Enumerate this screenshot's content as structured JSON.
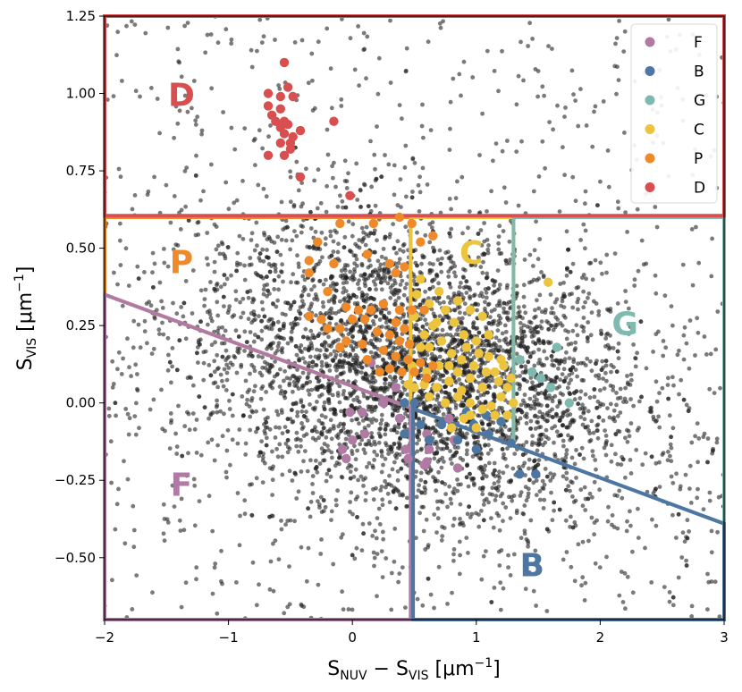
{
  "chart_data": {
    "type": "scatter",
    "xlabel_parts": {
      "s": "S",
      "nuv": "NUV",
      "minus": " − ",
      "vis": "VIS",
      "unit": " [μm",
      "exp": "−1",
      "close": "]"
    },
    "ylabel_parts": {
      "s": "S",
      "vis": "VIS",
      "unit": " [μm",
      "exp": "−1",
      "close": "]"
    },
    "xlim": [
      -2,
      3
    ],
    "ylim": [
      -0.7,
      1.25
    ],
    "xticks": [
      -2,
      -1,
      0,
      1,
      2,
      3
    ],
    "xtick_labels": [
      "−2",
      "−1",
      "0",
      "1",
      "2",
      "3"
    ],
    "yticks": [
      -0.5,
      -0.25,
      0.0,
      0.25,
      0.5,
      0.75,
      1.0,
      1.25
    ],
    "ytick_labels": [
      "−0.50",
      "−0.25",
      "0.00",
      "0.25",
      "0.50",
      "0.75",
      "1.00",
      "1.25"
    ],
    "grid": false,
    "legend_position": "top-right",
    "background": {
      "n_points": 5200,
      "center_x": 0.55,
      "center_y": 0.1,
      "sd_x": 0.9,
      "sd_y": 0.24,
      "correlation": -0.25,
      "color": "#222222",
      "opacity": 0.6
    },
    "boundary_line": {
      "x1": -2,
      "y1": 0.35,
      "x2": 3,
      "y2": -0.39,
      "color": "#111111",
      "style": "dashed"
    },
    "regions": [
      {
        "name": "D",
        "color": "#d94f50",
        "label_x": -1.38,
        "label_y": 0.96
      },
      {
        "name": "P",
        "color": "#ef8a2b",
        "label_x": -1.38,
        "label_y": 0.42
      },
      {
        "name": "C",
        "color": "#ecc43e",
        "label_x": 0.96,
        "label_y": 0.45
      },
      {
        "name": "G",
        "color": "#7fbab1",
        "label_x": 2.2,
        "label_y": 0.22
      },
      {
        "name": "F",
        "color": "#b07aa4",
        "label_x": -1.38,
        "label_y": -0.3
      },
      {
        "name": "B",
        "color": "#4e76a2",
        "label_x": 1.45,
        "label_y": -0.56
      }
    ],
    "series": [
      {
        "name": "F",
        "color": "#b07aa4",
        "points": [
          [
            0.08,
            -0.03
          ],
          [
            -0.02,
            -0.03
          ],
          [
            0.1,
            -0.1
          ],
          [
            0.0,
            -0.12
          ],
          [
            -0.08,
            -0.15
          ],
          [
            -0.05,
            -0.18
          ],
          [
            0.35,
            0.05
          ],
          [
            0.38,
            -0.05
          ],
          [
            0.43,
            -0.15
          ],
          [
            0.45,
            -0.18
          ],
          [
            0.6,
            -0.1
          ],
          [
            0.62,
            -0.15
          ],
          [
            0.58,
            -0.2
          ],
          [
            0.78,
            -0.05
          ],
          [
            0.82,
            -0.12
          ],
          [
            0.85,
            -0.21
          ],
          [
            0.6,
            -0.19
          ],
          [
            0.25,
            0.0
          ],
          [
            0.15,
            0.13
          ]
        ]
      },
      {
        "name": "B",
        "color": "#4e76a2",
        "points": [
          [
            0.42,
            -0.1
          ],
          [
            0.55,
            -0.07
          ],
          [
            0.62,
            -0.12
          ],
          [
            0.72,
            -0.07
          ],
          [
            0.98,
            -0.07
          ],
          [
            1.1,
            -0.1
          ],
          [
            1.08,
            -0.04
          ],
          [
            1.2,
            -0.06
          ],
          [
            1.28,
            -0.13
          ],
          [
            1.35,
            -0.23
          ],
          [
            1.48,
            -0.23
          ],
          [
            0.85,
            -0.12
          ],
          [
            0.92,
            -0.03
          ],
          [
            0.42,
            0.0
          ],
          [
            1.0,
            -0.15
          ],
          [
            0.5,
            -0.0
          ]
        ]
      },
      {
        "name": "G",
        "color": "#7fbab1",
        "points": [
          [
            1.35,
            0.14
          ],
          [
            1.45,
            0.1
          ],
          [
            1.65,
            0.18
          ],
          [
            1.6,
            0.05
          ],
          [
            1.75,
            0.0
          ],
          [
            1.52,
            0.08
          ]
        ]
      },
      {
        "name": "C",
        "color": "#ecc43e",
        "points": [
          [
            1.58,
            0.39
          ],
          [
            0.85,
            0.33
          ],
          [
            0.95,
            0.3
          ],
          [
            1.05,
            0.28
          ],
          [
            0.75,
            0.3
          ],
          [
            0.65,
            0.25
          ],
          [
            0.9,
            0.22
          ],
          [
            1.0,
            0.2
          ],
          [
            1.1,
            0.15
          ],
          [
            1.2,
            0.14
          ],
          [
            0.8,
            0.16
          ],
          [
            0.7,
            0.12
          ],
          [
            0.6,
            0.1
          ],
          [
            0.55,
            0.18
          ],
          [
            0.5,
            0.05
          ],
          [
            0.45,
            0.06
          ],
          [
            0.5,
            0.28
          ],
          [
            0.62,
            0.32
          ],
          [
            0.7,
            0.36
          ],
          [
            0.85,
            0.1
          ],
          [
            0.95,
            0.08
          ],
          [
            1.05,
            0.05
          ],
          [
            1.15,
            0.1
          ],
          [
            1.25,
            0.05
          ],
          [
            0.75,
            0.0
          ],
          [
            0.85,
            0.02
          ],
          [
            0.95,
            0.0
          ],
          [
            1.05,
            -0.02
          ],
          [
            1.15,
            -0.04
          ],
          [
            1.25,
            -0.04
          ],
          [
            0.9,
            -0.05
          ],
          [
            0.8,
            -0.08
          ],
          [
            1.1,
            0.22
          ],
          [
            1.2,
            0.02
          ],
          [
            0.68,
            0.05
          ],
          [
            0.78,
            0.07
          ],
          [
            0.88,
            0.14
          ],
          [
            0.98,
            0.12
          ],
          [
            1.08,
            0.1
          ],
          [
            1.18,
            0.07
          ],
          [
            1.28,
            0.08
          ],
          [
            0.92,
            0.18
          ],
          [
            1.02,
            0.16
          ],
          [
            0.72,
            0.2
          ],
          [
            0.62,
            0.18
          ],
          [
            0.58,
            0.22
          ],
          [
            0.68,
            0.26
          ],
          [
            0.82,
            0.26
          ],
          [
            0.52,
            0.35
          ],
          [
            0.55,
            0.4
          ],
          [
            0.48,
            0.12
          ],
          [
            0.58,
            0.06
          ],
          [
            1.3,
            0.0
          ],
          [
            1.0,
            -0.08
          ],
          [
            0.95,
            -0.04
          ],
          [
            1.12,
            -0.01
          ],
          [
            0.88,
            0.04
          ],
          [
            0.78,
            0.12
          ],
          [
            1.22,
            0.12
          ],
          [
            0.62,
            0.02
          ]
        ]
      },
      {
        "name": "P",
        "color": "#ef8a2b",
        "points": [
          [
            0.17,
            0.58
          ],
          [
            -0.1,
            0.58
          ],
          [
            0.48,
            0.58
          ],
          [
            0.38,
            0.6
          ],
          [
            0.65,
            0.54
          ],
          [
            0.55,
            0.52
          ],
          [
            -0.28,
            0.52
          ],
          [
            -0.35,
            0.46
          ],
          [
            -0.15,
            0.45
          ],
          [
            0.12,
            0.48
          ],
          [
            0.3,
            0.45
          ],
          [
            0.42,
            0.44
          ],
          [
            -0.35,
            0.42
          ],
          [
            0.35,
            0.42
          ],
          [
            -0.2,
            0.36
          ],
          [
            -0.05,
            0.31
          ],
          [
            0.05,
            0.3
          ],
          [
            0.15,
            0.3
          ],
          [
            0.25,
            0.32
          ],
          [
            0.38,
            0.3
          ],
          [
            0.48,
            0.3
          ],
          [
            0.58,
            0.3
          ],
          [
            -0.35,
            0.28
          ],
          [
            -0.25,
            0.27
          ],
          [
            0.0,
            0.27
          ],
          [
            0.1,
            0.27
          ],
          [
            0.35,
            0.26
          ],
          [
            0.42,
            0.24
          ],
          [
            -0.2,
            0.24
          ],
          [
            -0.1,
            0.24
          ],
          [
            0.2,
            0.23
          ],
          [
            0.3,
            0.22
          ],
          [
            0.38,
            0.2
          ],
          [
            0.46,
            0.19
          ],
          [
            -0.05,
            0.2
          ],
          [
            0.08,
            0.19
          ],
          [
            -0.1,
            0.18
          ],
          [
            0.25,
            0.17
          ],
          [
            0.35,
            0.15
          ],
          [
            0.45,
            0.14
          ],
          [
            0.55,
            0.13
          ],
          [
            0.65,
            0.12
          ],
          [
            0.3,
            0.11
          ],
          [
            0.4,
            0.1
          ],
          [
            0.5,
            0.1
          ],
          [
            0.6,
            0.08
          ],
          [
            0.22,
            0.1
          ],
          [
            0.12,
            0.14
          ]
        ]
      },
      {
        "name": "D",
        "color": "#d94f50",
        "points": [
          [
            -0.55,
            1.1
          ],
          [
            -0.52,
            1.02
          ],
          [
            -0.68,
            1.0
          ],
          [
            -0.58,
            0.99
          ],
          [
            -0.48,
            0.99
          ],
          [
            -0.68,
            0.96
          ],
          [
            -0.58,
            0.95
          ],
          [
            -0.55,
            0.91
          ],
          [
            -0.62,
            0.91
          ],
          [
            -0.58,
            0.89
          ],
          [
            -0.52,
            0.9
          ],
          [
            -0.65,
            0.93
          ],
          [
            -0.15,
            0.91
          ],
          [
            -0.55,
            0.87
          ],
          [
            -0.42,
            0.88
          ],
          [
            -0.48,
            0.86
          ],
          [
            -0.5,
            0.84
          ],
          [
            -0.58,
            0.84
          ],
          [
            -0.68,
            0.8
          ],
          [
            -0.55,
            0.8
          ],
          [
            -0.5,
            0.82
          ],
          [
            -0.42,
            0.73
          ],
          [
            -0.02,
            0.67
          ]
        ]
      }
    ]
  }
}
